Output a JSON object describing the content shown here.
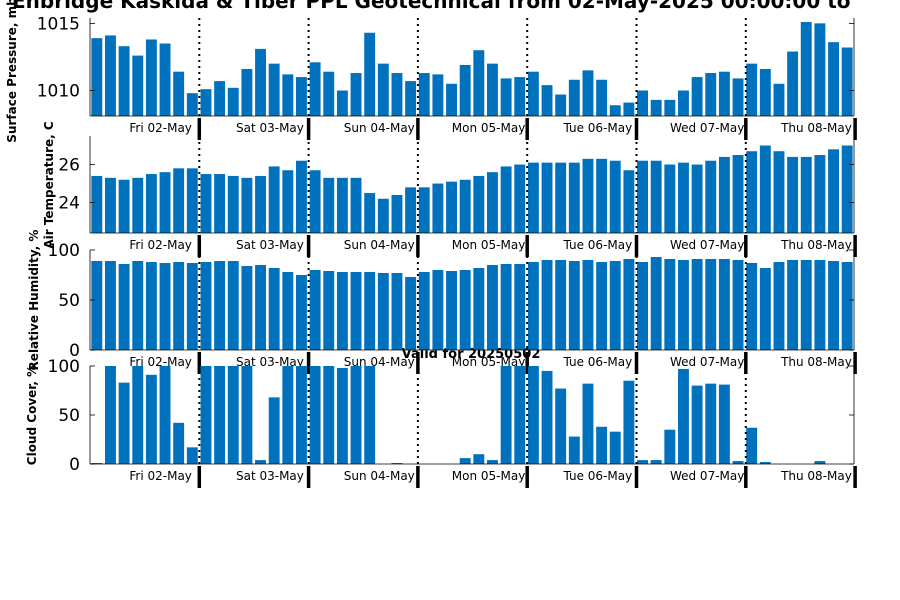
{
  "title": "Enbridge  Kaskida & Tiber PPL Geotechnical from 02-May-2025 00:00:00 to",
  "valid_label": "Valid for 20250502",
  "day_labels": [
    "Fri 02-May",
    "Sat 03-May",
    "Sun 04-May",
    "Mon 05-May",
    "Tue 06-May",
    "Wed 07-May",
    "Thu 08-May"
  ],
  "colors": {
    "bar": "#0072BD",
    "axis": "#000000"
  },
  "chart_data": [
    {
      "type": "bar",
      "ylabel": "Surface Pressure, mb",
      "ylim": [
        1008.1,
        1015.4
      ],
      "yticks": [
        1010,
        1015
      ],
      "values": [
        1013.9,
        1014.1,
        1013.3,
        1012.6,
        1013.8,
        1013.5,
        1011.4,
        1009.8,
        1010.1,
        1010.7,
        1010.2,
        1011.6,
        1013.1,
        1012.0,
        1011.2,
        1011.0,
        1012.1,
        1011.4,
        1010.0,
        1011.3,
        1014.3,
        1012.0,
        1011.3,
        1010.7,
        1011.3,
        1011.2,
        1010.5,
        1011.9,
        1013.0,
        1012.0,
        1010.9,
        1011.0,
        1011.4,
        1010.4,
        1009.7,
        1010.8,
        1011.5,
        1010.8,
        1008.9,
        1009.1,
        1010.0,
        1009.3,
        1009.3,
        1010.0,
        1011.0,
        1011.3,
        1011.4,
        1010.9,
        1012.0,
        1011.6,
        1010.5,
        1012.9,
        1015.1,
        1015.0,
        1013.6,
        1013.2
      ]
    },
    {
      "type": "bar",
      "ylabel": "Air Temperature, C",
      "ylim": [
        22.4,
        27.5
      ],
      "yticks": [
        24,
        26
      ],
      "values": [
        25.4,
        25.3,
        25.2,
        25.3,
        25.5,
        25.6,
        25.8,
        25.8,
        25.5,
        25.5,
        25.4,
        25.3,
        25.4,
        25.9,
        25.7,
        26.2,
        25.7,
        25.3,
        25.3,
        25.3,
        24.5,
        24.2,
        24.4,
        24.8,
        24.8,
        25.0,
        25.1,
        25.2,
        25.4,
        25.6,
        25.9,
        26.0,
        26.1,
        26.1,
        26.1,
        26.1,
        26.3,
        26.3,
        26.2,
        25.7,
        26.2,
        26.2,
        26.0,
        26.1,
        26.0,
        26.2,
        26.4,
        26.5,
        26.7,
        27.0,
        26.7,
        26.4,
        26.4,
        26.5,
        26.8,
        27.0
      ]
    },
    {
      "type": "bar",
      "ylabel": "Relative Humidity, %",
      "ylim": [
        0,
        100
      ],
      "yticks": [
        0,
        50,
        100
      ],
      "values": [
        89,
        89,
        86,
        89,
        88,
        87,
        88,
        87,
        88,
        89,
        89,
        84,
        85,
        82,
        78,
        75,
        80,
        79,
        78,
        78,
        78,
        77,
        77,
        73,
        78,
        80,
        79,
        80,
        82,
        85,
        86,
        86,
        88,
        90,
        90,
        89,
        90,
        88,
        89,
        91,
        88,
        93,
        91,
        90,
        91,
        91,
        91,
        90,
        87,
        82,
        88,
        90,
        90,
        90,
        89,
        88
      ]
    },
    {
      "type": "bar",
      "ylabel": "Cloud Cover, %",
      "ylim": [
        0,
        100
      ],
      "yticks": [
        0,
        50,
        100
      ],
      "values": [
        1,
        100,
        83,
        100,
        91,
        100,
        42,
        17,
        100,
        100,
        100,
        100,
        4,
        68,
        100,
        100,
        100,
        100,
        98,
        100,
        100,
        0,
        1,
        0,
        0,
        0,
        0,
        6,
        10,
        4,
        100,
        100,
        100,
        95,
        77,
        28,
        82,
        38,
        33,
        85,
        4,
        4,
        35,
        97,
        80,
        82,
        81,
        3,
        37,
        2,
        0,
        0,
        0,
        3,
        0,
        0
      ]
    }
  ]
}
